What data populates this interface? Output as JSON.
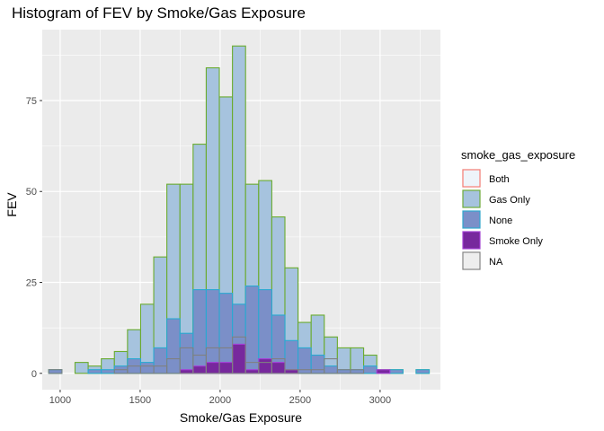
{
  "chart_data": {
    "type": "bar",
    "title": "Histogram of FEV by Smoke/Gas Exposure",
    "xlabel": "Smoke/Gas Exposure",
    "ylabel": "FEV",
    "xlim": [
      888,
      3377
    ],
    "ylim": [
      -4.5,
      94.5
    ],
    "xticks": [
      1000,
      1500,
      2000,
      2500,
      3000
    ],
    "yticks": [
      0,
      25,
      50,
      75
    ],
    "grid": true,
    "legend_position": "right",
    "bin_edges": [
      929,
      1011,
      1093,
      1175,
      1257,
      1339,
      1421,
      1503,
      1585,
      1667,
      1749,
      1831,
      1913,
      1995,
      2077,
      2159,
      2241,
      2323,
      2405,
      2487,
      2569,
      2651,
      2733,
      2815,
      2897,
      2979,
      3061,
      3143,
      3225,
      3307
    ],
    "legend": {
      "title": "smoke_gas_exposure",
      "entries": [
        "Both",
        "Gas Only",
        "None",
        "Smoke Only",
        "NA"
      ]
    },
    "series": [
      {
        "name": "Gas Only",
        "fill": "#a6c3de",
        "stroke": "#6aab2e",
        "values": [
          1,
          0,
          3,
          2,
          4,
          6,
          12,
          19,
          32,
          52,
          52,
          63,
          84,
          76,
          90,
          52,
          53,
          43,
          29,
          14,
          16,
          10,
          7,
          7,
          5,
          1,
          1,
          0,
          1
        ]
      },
      {
        "name": "None",
        "fill": "#7b8fc8",
        "stroke": "#29a9d1",
        "values": [
          1,
          0,
          0,
          1,
          1,
          2,
          4,
          3,
          7,
          15,
          11,
          23,
          23,
          22,
          19,
          24,
          23,
          16,
          9,
          7,
          5,
          2,
          1,
          1,
          2,
          0,
          1,
          0,
          1
        ]
      },
      {
        "name": "Smoke Only",
        "fill": "#77289d",
        "stroke": "#a53fd9",
        "values": [
          0,
          0,
          0,
          0,
          0,
          0,
          0,
          0,
          0,
          0,
          1,
          2,
          3,
          3,
          8,
          1,
          4,
          3,
          1,
          0,
          0,
          0,
          0,
          0,
          0,
          1,
          0,
          0,
          0
        ]
      },
      {
        "name": "NA",
        "fill": "none",
        "stroke": "#808080",
        "values": [
          1,
          0,
          0,
          0,
          0,
          1,
          2,
          2,
          2,
          4,
          7,
          5,
          7,
          7,
          10,
          3,
          3,
          4,
          1,
          1,
          1,
          4,
          1,
          1,
          0,
          0,
          0,
          0,
          0
        ]
      },
      {
        "name": "Both",
        "fill": "#f0f4fa",
        "stroke": "#f8766d",
        "values": [
          0,
          0,
          0,
          0,
          0,
          0,
          0,
          0,
          0,
          0,
          0,
          0,
          0,
          0,
          0,
          0,
          0,
          0,
          0,
          0,
          0,
          0,
          0,
          0,
          0,
          0,
          0,
          0,
          0
        ]
      }
    ],
    "legend_styles": [
      {
        "fill": "#eef4fa",
        "stroke": "#f8766d"
      },
      {
        "fill": "#a6c3de",
        "stroke": "#6aab2e"
      },
      {
        "fill": "#7b8fc8",
        "stroke": "#29a9d1"
      },
      {
        "fill": "#77289d",
        "stroke": "#a53fd9"
      },
      {
        "fill": "#eeeeee",
        "stroke": "#808080"
      }
    ],
    "panel_bg": "#ebebeb",
    "grid_color": "#ffffff"
  }
}
